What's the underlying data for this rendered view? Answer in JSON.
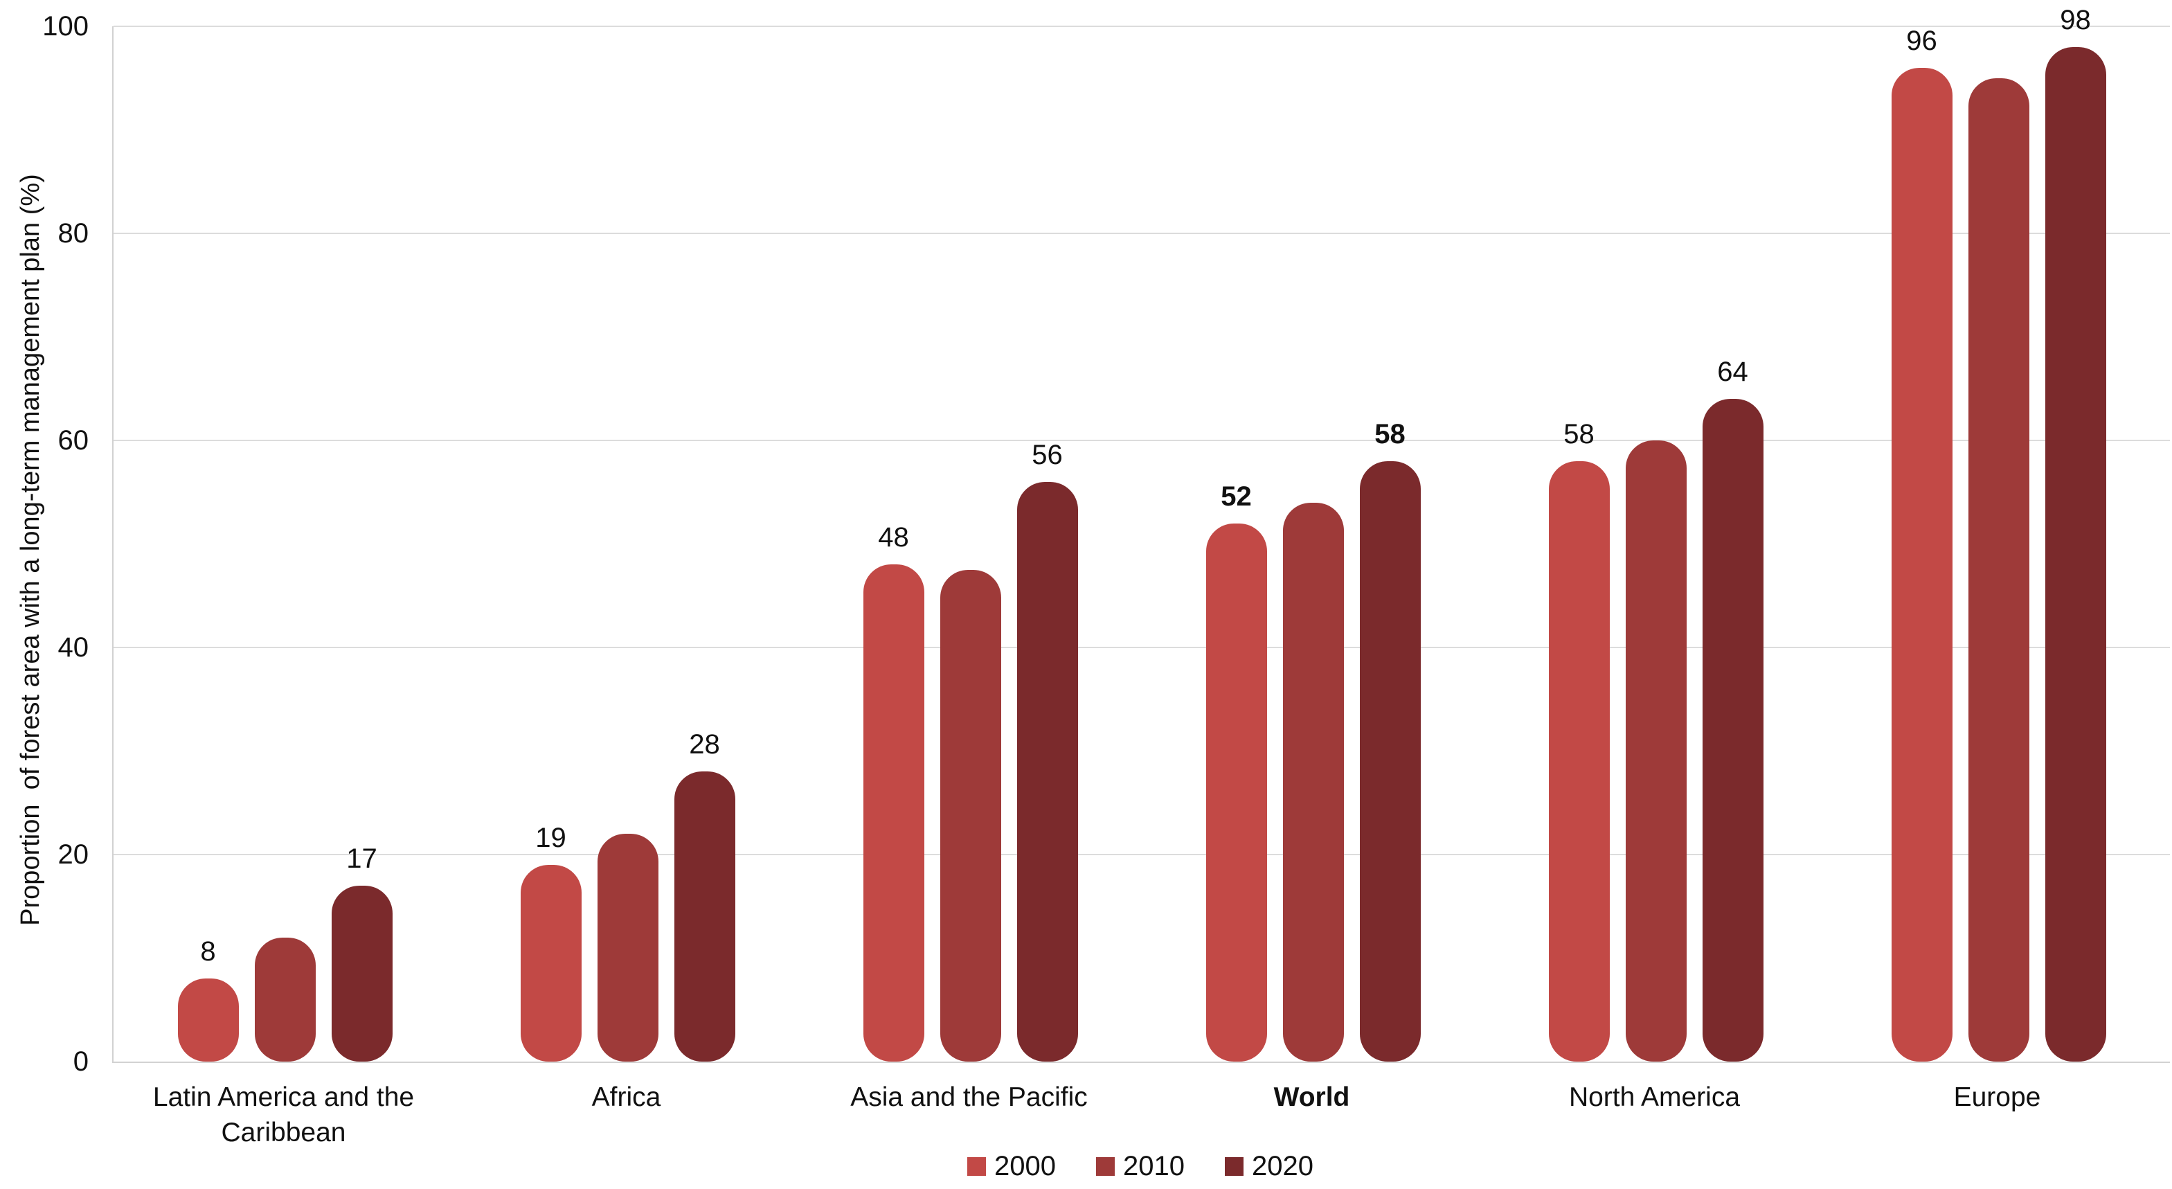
{
  "chart_data": {
    "type": "bar",
    "title": "",
    "xlabel": "",
    "ylabel": "Proportion  of forest area with a long-term management plan (%)",
    "ylim": [
      0,
      100
    ],
    "ytick_labels": [
      "0",
      "20",
      "40",
      "60",
      "80",
      "100"
    ],
    "grid": "horizontal gridlines on",
    "legend_position": "bottom-center",
    "series_names": [
      "2000",
      "2010",
      "2020"
    ],
    "series_colors": [
      "#C24946",
      "#9E3A39",
      "#7B2A2C"
    ],
    "categories": [
      {
        "label": "Latin America and the Caribbean",
        "bold": false,
        "values": [
          8,
          12,
          17
        ],
        "data_labels": [
          "8",
          "",
          "17"
        ]
      },
      {
        "label": "Africa",
        "bold": false,
        "values": [
          19,
          22,
          28
        ],
        "data_labels": [
          "19",
          "",
          "28"
        ]
      },
      {
        "label": "Asia and the Pacific",
        "bold": false,
        "values": [
          48,
          47.5,
          56
        ],
        "data_labels": [
          "48",
          "",
          "56"
        ]
      },
      {
        "label": "World",
        "bold": true,
        "values": [
          52,
          54,
          58
        ],
        "data_labels": [
          "52",
          "",
          "58"
        ]
      },
      {
        "label": "North America",
        "bold": false,
        "values": [
          58,
          60,
          64
        ],
        "data_labels": [
          "58",
          "",
          "64"
        ]
      },
      {
        "label": "Europe",
        "bold": false,
        "values": [
          96,
          95,
          98
        ],
        "data_labels": [
          "96",
          "",
          "98"
        ]
      }
    ]
  },
  "colors": {
    "gridline": "#dcdcdc",
    "axis": "#d2d2d2",
    "text": "#111111",
    "background": "#ffffff"
  }
}
